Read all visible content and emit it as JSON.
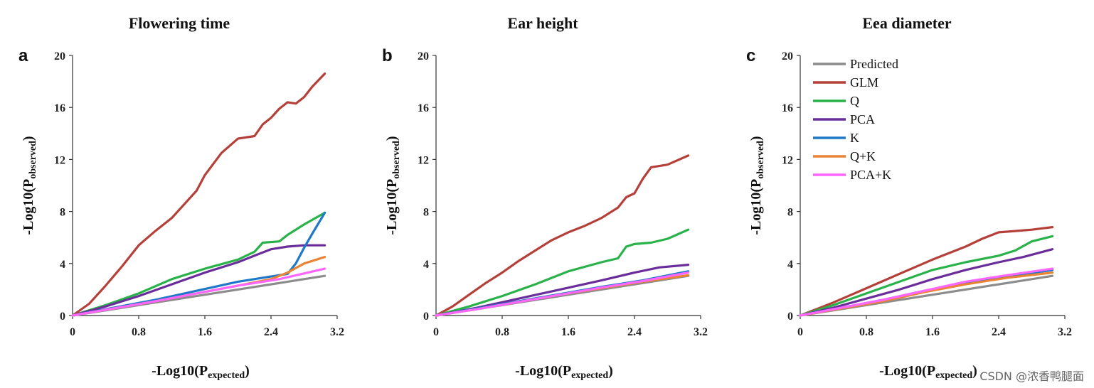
{
  "watermark": "CSDN @浓香鸭腿面",
  "legend": {
    "entries": [
      {
        "name": "Predicted",
        "color": "#8c8c8c"
      },
      {
        "name": "GLM",
        "color": "#b5403a"
      },
      {
        "name": "Q",
        "color": "#2ab24a"
      },
      {
        "name": "PCA",
        "color": "#6a2e9a"
      },
      {
        "name": "K",
        "color": "#1f78c8"
      },
      {
        "name": "Q+K",
        "color": "#ea8434"
      },
      {
        "name": "PCA+K",
        "color": "#ff66ff"
      }
    ]
  },
  "chart_data": [
    {
      "type": "line",
      "panel": "a",
      "title": "Flowering time",
      "xlabel_main": "-Log10(P",
      "xlabel_sub": "expected",
      "xlabel_end": ")",
      "ylabel_main": "-Log10(P",
      "ylabel_sub": "observed",
      "ylabel_end": ")",
      "xlim": [
        0,
        3.2
      ],
      "ylim": [
        0,
        20
      ],
      "xticks": [
        "0",
        "0.8",
        "1.6",
        "2.4",
        "3.2"
      ],
      "yticks": [
        "0",
        "4",
        "8",
        "12",
        "16",
        "20"
      ],
      "series": [
        {
          "name": "Predicted",
          "color": "#8c8c8c",
          "x": [
            0,
            0.5,
            1.0,
            1.5,
            2.0,
            2.5,
            3.05
          ],
          "y": [
            0,
            0.5,
            1.0,
            1.5,
            2.0,
            2.5,
            3.05
          ]
        },
        {
          "name": "GLM",
          "color": "#b5403a",
          "x": [
            0,
            0.2,
            0.4,
            0.6,
            0.8,
            1.0,
            1.2,
            1.4,
            1.5,
            1.6,
            1.8,
            2.0,
            2.2,
            2.3,
            2.4,
            2.5,
            2.6,
            2.7,
            2.8,
            2.9,
            3.05
          ],
          "y": [
            0,
            0.9,
            2.3,
            3.8,
            5.4,
            6.5,
            7.5,
            8.9,
            9.6,
            10.8,
            12.5,
            13.6,
            13.8,
            14.7,
            15.2,
            15.9,
            16.4,
            16.3,
            16.8,
            17.6,
            18.6
          ]
        },
        {
          "name": "Q",
          "color": "#2ab24a",
          "x": [
            0,
            0.4,
            0.8,
            1.2,
            1.6,
            2.0,
            2.2,
            2.3,
            2.5,
            2.6,
            2.8,
            3.05
          ],
          "y": [
            0,
            0.8,
            1.7,
            2.8,
            3.6,
            4.3,
            4.9,
            5.6,
            5.7,
            6.2,
            7.0,
            7.9
          ]
        },
        {
          "name": "PCA",
          "color": "#6a2e9a",
          "x": [
            0,
            0.4,
            0.8,
            1.2,
            1.6,
            2.0,
            2.2,
            2.4,
            2.6,
            2.8,
            3.05
          ],
          "y": [
            0,
            0.7,
            1.5,
            2.4,
            3.3,
            4.1,
            4.6,
            5.1,
            5.3,
            5.4,
            5.4
          ]
        },
        {
          "name": "K",
          "color": "#1f78c8",
          "x": [
            0,
            0.5,
            1.0,
            1.5,
            2.0,
            2.4,
            2.6,
            2.7,
            2.8,
            2.9,
            3.05
          ],
          "y": [
            0,
            0.6,
            1.2,
            1.9,
            2.6,
            3.0,
            3.2,
            4.0,
            5.2,
            6.3,
            7.9
          ]
        },
        {
          "name": "Q+K",
          "color": "#ea8434",
          "x": [
            0,
            0.5,
            1.0,
            1.5,
            2.0,
            2.4,
            2.6,
            2.8,
            3.05
          ],
          "y": [
            0,
            0.55,
            1.1,
            1.7,
            2.3,
            2.8,
            3.3,
            4.0,
            4.5
          ]
        },
        {
          "name": "PCA+K",
          "color": "#ff66ff",
          "x": [
            0,
            0.5,
            1.0,
            1.5,
            2.0,
            2.5,
            3.05
          ],
          "y": [
            0,
            0.55,
            1.1,
            1.7,
            2.3,
            2.8,
            3.6
          ]
        }
      ]
    },
    {
      "type": "line",
      "panel": "b",
      "title": "Ear height",
      "xlabel_main": "-Log10(P",
      "xlabel_sub": "expected",
      "xlabel_end": ")",
      "ylabel_main": "-Log10(P",
      "ylabel_sub": "observed",
      "ylabel_end": ")",
      "xlim": [
        0,
        3.2
      ],
      "ylim": [
        0,
        20
      ],
      "xticks": [
        "0",
        "0.8",
        "1.6",
        "2.4",
        "3.2"
      ],
      "yticks": [
        "0",
        "4",
        "8",
        "12",
        "16",
        "20"
      ],
      "series": [
        {
          "name": "Predicted",
          "color": "#8c8c8c",
          "x": [
            0,
            0.5,
            1.0,
            1.5,
            2.0,
            2.5,
            3.05
          ],
          "y": [
            0,
            0.5,
            1.0,
            1.5,
            2.0,
            2.5,
            3.05
          ]
        },
        {
          "name": "GLM",
          "color": "#b5403a",
          "x": [
            0,
            0.2,
            0.4,
            0.6,
            0.8,
            1.0,
            1.2,
            1.4,
            1.6,
            1.8,
            2.0,
            2.2,
            2.3,
            2.4,
            2.5,
            2.6,
            2.8,
            3.05
          ],
          "y": [
            0,
            0.7,
            1.6,
            2.5,
            3.3,
            4.2,
            5.0,
            5.8,
            6.4,
            6.9,
            7.5,
            8.3,
            9.1,
            9.4,
            10.5,
            11.4,
            11.6,
            12.3
          ]
        },
        {
          "name": "Q",
          "color": "#2ab24a",
          "x": [
            0,
            0.4,
            0.8,
            1.2,
            1.6,
            2.0,
            2.2,
            2.3,
            2.4,
            2.6,
            2.8,
            3.05
          ],
          "y": [
            0,
            0.7,
            1.5,
            2.4,
            3.4,
            4.1,
            4.4,
            5.3,
            5.5,
            5.6,
            5.9,
            6.6
          ]
        },
        {
          "name": "PCA",
          "color": "#6a2e9a",
          "x": [
            0,
            0.5,
            1.0,
            1.5,
            2.0,
            2.4,
            2.7,
            3.05
          ],
          "y": [
            0,
            0.6,
            1.3,
            2.0,
            2.7,
            3.3,
            3.7,
            3.9
          ]
        },
        {
          "name": "K",
          "color": "#1f78c8",
          "x": [
            0,
            0.5,
            1.0,
            1.5,
            2.0,
            2.5,
            3.05
          ],
          "y": [
            0,
            0.55,
            1.1,
            1.65,
            2.2,
            2.7,
            3.4
          ]
        },
        {
          "name": "Q+K",
          "color": "#ea8434",
          "x": [
            0,
            0.5,
            1.0,
            1.5,
            2.0,
            2.5,
            3.05
          ],
          "y": [
            0,
            0.5,
            1.05,
            1.6,
            2.1,
            2.6,
            3.1
          ]
        },
        {
          "name": "PCA+K",
          "color": "#ff66ff",
          "x": [
            0,
            0.5,
            1.0,
            1.5,
            2.0,
            2.5,
            3.05
          ],
          "y": [
            0,
            0.5,
            1.05,
            1.6,
            2.15,
            2.65,
            3.3
          ]
        }
      ]
    },
    {
      "type": "line",
      "panel": "c",
      "title": "Eea diameter",
      "xlabel_main": "-Log10(P",
      "xlabel_sub": "expected",
      "xlabel_end": ")",
      "ylabel_main": "-Log10(P",
      "ylabel_sub": "observed",
      "ylabel_end": ")",
      "xlim": [
        0,
        3.2
      ],
      "ylim": [
        0,
        20
      ],
      "xticks": [
        "0",
        "0.8",
        "1.6",
        "2.4",
        "3.2"
      ],
      "yticks": [
        "0",
        "4",
        "8",
        "12",
        "16",
        "20"
      ],
      "legend_position": "top-left",
      "series": [
        {
          "name": "Predicted",
          "color": "#8c8c8c",
          "x": [
            0,
            0.5,
            1.0,
            1.5,
            2.0,
            2.5,
            3.05
          ],
          "y": [
            0,
            0.5,
            1.0,
            1.5,
            2.0,
            2.5,
            3.05
          ]
        },
        {
          "name": "GLM",
          "color": "#b5403a",
          "x": [
            0,
            0.4,
            0.8,
            1.2,
            1.6,
            2.0,
            2.2,
            2.4,
            2.6,
            2.8,
            3.05
          ],
          "y": [
            0,
            1.0,
            2.1,
            3.2,
            4.3,
            5.3,
            5.9,
            6.4,
            6.5,
            6.6,
            6.8
          ]
        },
        {
          "name": "Q",
          "color": "#2ab24a",
          "x": [
            0,
            0.4,
            0.8,
            1.2,
            1.6,
            2.0,
            2.4,
            2.6,
            2.8,
            3.05
          ],
          "y": [
            0,
            0.8,
            1.7,
            2.6,
            3.5,
            4.1,
            4.6,
            5.0,
            5.7,
            6.1
          ]
        },
        {
          "name": "PCA",
          "color": "#6a2e9a",
          "x": [
            0,
            0.4,
            0.8,
            1.2,
            1.6,
            2.0,
            2.4,
            2.7,
            3.05
          ],
          "y": [
            0,
            0.6,
            1.3,
            2.0,
            2.8,
            3.5,
            4.1,
            4.5,
            5.1
          ]
        },
        {
          "name": "K",
          "color": "#1f78c8",
          "x": [
            0,
            0.5,
            1.0,
            1.5,
            2.0,
            2.5,
            3.05
          ],
          "y": [
            0,
            0.6,
            1.2,
            1.9,
            2.5,
            3.0,
            3.5
          ]
        },
        {
          "name": "Q+K",
          "color": "#ea8434",
          "x": [
            0,
            0.5,
            1.0,
            1.5,
            2.0,
            2.5,
            3.05
          ],
          "y": [
            0,
            0.55,
            1.1,
            1.8,
            2.4,
            2.9,
            3.3
          ]
        },
        {
          "name": "PCA+K",
          "color": "#ff66ff",
          "x": [
            0,
            0.5,
            1.0,
            1.5,
            2.0,
            2.5,
            3.05
          ],
          "y": [
            0,
            0.6,
            1.2,
            1.9,
            2.6,
            3.1,
            3.6
          ]
        }
      ]
    }
  ]
}
